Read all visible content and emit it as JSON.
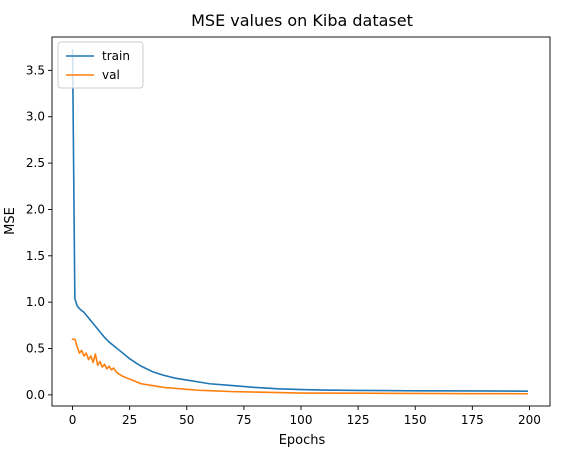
{
  "chart_data": {
    "type": "line",
    "title": "MSE values on Kiba dataset",
    "xlabel": "Epochs",
    "ylabel": "MSE",
    "xlim": [
      -9,
      209
    ],
    "ylim": [
      -0.12,
      3.86
    ],
    "xticks": [
      0,
      25,
      50,
      75,
      100,
      125,
      150,
      175,
      200
    ],
    "yticks": [
      0.0,
      0.5,
      1.0,
      1.5,
      2.0,
      2.5,
      3.0,
      3.5
    ],
    "ytick_labels": [
      "0.0",
      "0.5",
      "1.0",
      "1.5",
      "2.0",
      "2.5",
      "3.0",
      "3.5"
    ],
    "grid": false,
    "legend": {
      "position": "top-left",
      "entries": [
        "train",
        "val"
      ]
    },
    "series": [
      {
        "name": "train",
        "color": "#1f77b4",
        "x": [
          0,
          1,
          2,
          3,
          4,
          5,
          6,
          7,
          8,
          9,
          10,
          12,
          14,
          16,
          18,
          20,
          22,
          25,
          28,
          30,
          35,
          40,
          45,
          50,
          55,
          60,
          70,
          80,
          90,
          100,
          110,
          125,
          150,
          175,
          199
        ],
        "values": [
          3.72,
          1.04,
          0.96,
          0.93,
          0.91,
          0.89,
          0.86,
          0.83,
          0.8,
          0.77,
          0.74,
          0.68,
          0.62,
          0.57,
          0.53,
          0.49,
          0.45,
          0.39,
          0.34,
          0.31,
          0.25,
          0.21,
          0.18,
          0.16,
          0.14,
          0.12,
          0.1,
          0.08,
          0.065,
          0.057,
          0.052,
          0.048,
          0.044,
          0.042,
          0.04
        ]
      },
      {
        "name": "val",
        "color": "#ff7f0e",
        "x": [
          0,
          1,
          2,
          3,
          4,
          5,
          6,
          7,
          8,
          9,
          10,
          11,
          12,
          13,
          14,
          15,
          16,
          17,
          18,
          19,
          20,
          22,
          24,
          26,
          28,
          30,
          35,
          40,
          45,
          50,
          55,
          60,
          70,
          80,
          90,
          100,
          125,
          150,
          175,
          199
        ],
        "values": [
          0.6,
          0.6,
          0.52,
          0.45,
          0.48,
          0.42,
          0.45,
          0.38,
          0.42,
          0.35,
          0.44,
          0.32,
          0.36,
          0.3,
          0.33,
          0.28,
          0.31,
          0.27,
          0.29,
          0.25,
          0.23,
          0.2,
          0.18,
          0.16,
          0.14,
          0.12,
          0.1,
          0.08,
          0.07,
          0.06,
          0.05,
          0.045,
          0.035,
          0.03,
          0.025,
          0.02,
          0.018,
          0.015,
          0.013,
          0.012
        ]
      }
    ]
  }
}
